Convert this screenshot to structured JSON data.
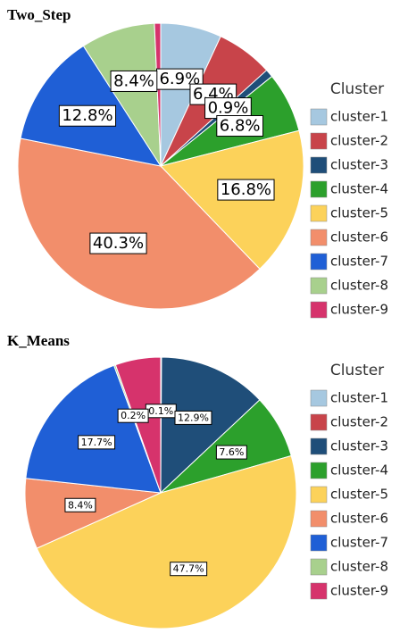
{
  "chart_data": [
    {
      "type": "pie",
      "title": "Two_Step",
      "legend_title": "Cluster",
      "categories": [
        "cluster-1",
        "cluster-2",
        "cluster-3",
        "cluster-4",
        "cluster-5",
        "cluster-6",
        "cluster-7",
        "cluster-8",
        "cluster-9"
      ],
      "values": [
        6.9,
        6.4,
        0.9,
        6.8,
        16.8,
        40.3,
        12.8,
        8.4,
        0.7
      ],
      "value_labels": [
        "6.9%",
        "6.4%",
        "0.9%",
        "6.8%",
        "16.8%",
        "40.3%",
        "12.8%",
        "8.4%",
        null
      ],
      "colors": [
        "#a6c8e0",
        "#c8444a",
        "#1f4e79",
        "#2ca02c",
        "#fcd25a",
        "#f28e6b",
        "#1f5fd6",
        "#a8d08d",
        "#d6336c"
      ]
    },
    {
      "type": "pie",
      "title": "K_Means",
      "legend_title": "Cluster",
      "categories": [
        "cluster-1",
        "cluster-2",
        "cluster-3",
        "cluster-4",
        "cluster-5",
        "cluster-6",
        "cluster-7",
        "cluster-8",
        "cluster-9"
      ],
      "values": [
        0.1,
        0,
        12.9,
        7.6,
        47.7,
        8.4,
        17.7,
        0.2,
        5.4
      ],
      "value_labels": [
        "0.1%",
        null,
        "12.9%",
        "7.6%",
        "47.7%",
        "8.4%",
        "17.7%",
        "0.2%",
        null
      ],
      "colors": [
        "#a6c8e0",
        "#c8444a",
        "#1f4e79",
        "#2ca02c",
        "#fcd25a",
        "#f28e6b",
        "#1f5fd6",
        "#a8d08d",
        "#d6336c"
      ]
    }
  ]
}
